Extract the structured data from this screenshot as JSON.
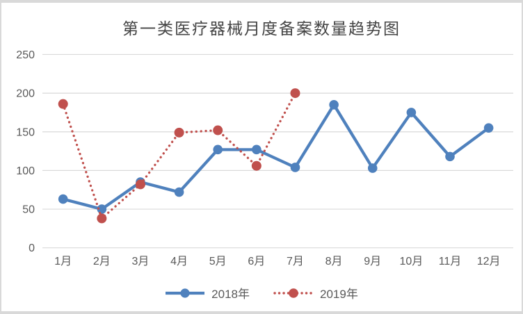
{
  "title": "第一类医疗器械月度备案数量趋势图",
  "colors": {
    "series_2018": "#4F81BD",
    "series_2019": "#C0504D",
    "gridline": "#D9D9D9",
    "axis_text": "#595959",
    "title_text": "#444444",
    "frame_border": "#D9D9D9",
    "background": "#FFFFFF"
  },
  "legend": {
    "items": [
      {
        "label": "2018年"
      },
      {
        "label": "2019年"
      }
    ]
  },
  "chart_data": {
    "type": "line",
    "title": "第一类医疗器械月度备案数量趋势图",
    "categories": [
      "1月",
      "2月",
      "3月",
      "4月",
      "5月",
      "6月",
      "7月",
      "8月",
      "9月",
      "10月",
      "11月",
      "12月"
    ],
    "series": [
      {
        "name": "2018年",
        "color": "#4F81BD",
        "line_style": "solid",
        "marker": "circle",
        "values": [
          63,
          50,
          85,
          72,
          127,
          127,
          104,
          185,
          103,
          175,
          118,
          155
        ]
      },
      {
        "name": "2019年",
        "color": "#C0504D",
        "line_style": "dotted",
        "marker": "circle",
        "values": [
          186,
          38,
          82,
          149,
          152,
          106,
          200
        ]
      }
    ],
    "xlabel": "",
    "ylabel": "",
    "ylim": [
      0,
      250
    ],
    "yticks": [
      0,
      50,
      100,
      150,
      200,
      250
    ],
    "grid": true,
    "legend_position": "bottom"
  }
}
